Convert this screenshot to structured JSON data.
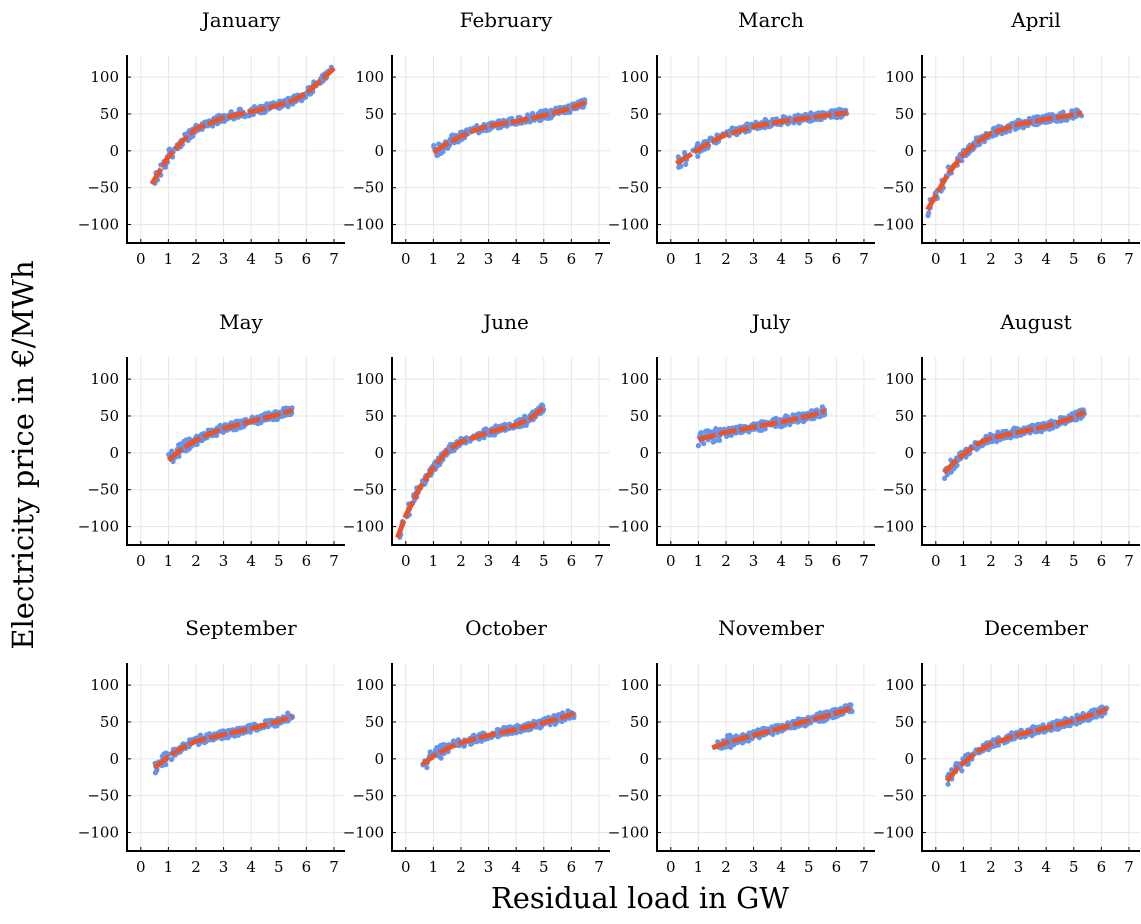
{
  "figure": {
    "xlabel": "Residual load in GW",
    "ylabel": "Electricity price in €/MWh"
  },
  "colors": {
    "points": "#6495ED",
    "fit": "#E8552D",
    "grid": "#e6e6e6",
    "axis": "#000000"
  },
  "chart_data": [
    {
      "type": "scatter",
      "title": "January",
      "xlim": [
        -0.5,
        7.4
      ],
      "ylim": [
        -125,
        130
      ],
      "xticks": [
        0,
        1,
        2,
        3,
        4,
        5,
        6,
        7
      ],
      "yticks": [
        -100,
        -50,
        0,
        50,
        100
      ],
      "grid": true,
      "range": [
        0.4,
        7.0
      ],
      "fit": [
        [
          0.4,
          -45
        ],
        [
          1,
          -8
        ],
        [
          1.5,
          13
        ],
        [
          2,
          30
        ],
        [
          3,
          45
        ],
        [
          4,
          53
        ],
        [
          5,
          62
        ],
        [
          5.5,
          68
        ],
        [
          6,
          78
        ],
        [
          6.5,
          95
        ],
        [
          7,
          112
        ]
      ]
    },
    {
      "type": "scatter",
      "title": "February",
      "xlim": [
        -0.5,
        7.4
      ],
      "ylim": [
        -125,
        130
      ],
      "xticks": [
        0,
        1,
        2,
        3,
        4,
        5,
        6,
        7
      ],
      "yticks": [
        -100,
        -50,
        0,
        50,
        100
      ],
      "grid": true,
      "range": [
        1.0,
        6.5
      ],
      "fit": [
        [
          1,
          -2
        ],
        [
          1.5,
          10
        ],
        [
          2,
          20
        ],
        [
          2.5,
          28
        ],
        [
          3,
          34
        ],
        [
          4,
          40
        ],
        [
          5,
          48
        ],
        [
          5.5,
          53
        ],
        [
          6,
          58
        ],
        [
          6.5,
          66
        ]
      ]
    },
    {
      "type": "scatter",
      "title": "March",
      "xlim": [
        -0.5,
        7.4
      ],
      "ylim": [
        -125,
        130
      ],
      "xticks": [
        0,
        1,
        2,
        3,
        4,
        5,
        6,
        7
      ],
      "yticks": [
        -100,
        -50,
        0,
        50,
        100
      ],
      "grid": true,
      "range": [
        0.2,
        6.4
      ],
      "fit": [
        [
          0.2,
          -17
        ],
        [
          0.6,
          -8
        ],
        [
          1,
          2
        ],
        [
          1.5,
          13
        ],
        [
          2,
          22
        ],
        [
          3,
          33
        ],
        [
          4,
          40
        ],
        [
          5,
          45
        ],
        [
          6,
          50
        ],
        [
          6.4,
          52
        ]
      ]
    },
    {
      "type": "scatter",
      "title": "April",
      "xlim": [
        -0.5,
        7.4
      ],
      "ylim": [
        -125,
        130
      ],
      "xticks": [
        0,
        1,
        2,
        3,
        4,
        5,
        6,
        7
      ],
      "yticks": [
        -100,
        -50,
        0,
        50,
        100
      ],
      "grid": true,
      "range": [
        -0.3,
        5.3
      ],
      "fit": [
        [
          -0.3,
          -80
        ],
        [
          0,
          -60
        ],
        [
          0.5,
          -28
        ],
        [
          1,
          -5
        ],
        [
          1.5,
          12
        ],
        [
          2,
          24
        ],
        [
          3,
          36
        ],
        [
          4,
          43
        ],
        [
          5,
          49
        ],
        [
          5.3,
          52
        ]
      ]
    },
    {
      "type": "scatter",
      "title": "May",
      "xlim": [
        -0.5,
        7.4
      ],
      "ylim": [
        -125,
        130
      ],
      "xticks": [
        0,
        1,
        2,
        3,
        4,
        5,
        6,
        7
      ],
      "yticks": [
        -100,
        -50,
        0,
        50,
        100
      ],
      "grid": true,
      "range": [
        1.0,
        5.5
      ],
      "fit": [
        [
          1,
          -10
        ],
        [
          1.5,
          6
        ],
        [
          2,
          17
        ],
        [
          2.5,
          26
        ],
        [
          3,
          33
        ],
        [
          4,
          43
        ],
        [
          5,
          52
        ],
        [
          5.5,
          58
        ]
      ]
    },
    {
      "type": "scatter",
      "title": "June",
      "xlim": [
        -0.5,
        7.4
      ],
      "ylim": [
        -125,
        130
      ],
      "xticks": [
        0,
        1,
        2,
        3,
        4,
        5,
        6,
        7
      ],
      "yticks": [
        -100,
        -50,
        0,
        50,
        100
      ],
      "grid": true,
      "range": [
        -0.3,
        5.0
      ],
      "fit": [
        [
          -0.3,
          -115
        ],
        [
          0,
          -85
        ],
        [
          0.5,
          -48
        ],
        [
          1,
          -20
        ],
        [
          1.5,
          3
        ],
        [
          2,
          15
        ],
        [
          3,
          28
        ],
        [
          4,
          38
        ],
        [
          4.5,
          46
        ],
        [
          5,
          62
        ]
      ]
    },
    {
      "type": "scatter",
      "title": "July",
      "xlim": [
        -0.5,
        7.4
      ],
      "ylim": [
        -125,
        130
      ],
      "xticks": [
        0,
        1,
        2,
        3,
        4,
        5,
        6,
        7
      ],
      "yticks": [
        -100,
        -50,
        0,
        50,
        100
      ],
      "grid": true,
      "range": [
        1.0,
        5.6
      ],
      "fit": [
        [
          1,
          18
        ],
        [
          2,
          28
        ],
        [
          3,
          35
        ],
        [
          4,
          42
        ],
        [
          5,
          50
        ],
        [
          5.6,
          57
        ]
      ]
    },
    {
      "type": "scatter",
      "title": "August",
      "xlim": [
        -0.5,
        7.4
      ],
      "ylim": [
        -125,
        130
      ],
      "xticks": [
        0,
        1,
        2,
        3,
        4,
        5,
        6,
        7
      ],
      "yticks": [
        -100,
        -50,
        0,
        50,
        100
      ],
      "grid": true,
      "range": [
        0.3,
        5.4
      ],
      "fit": [
        [
          0.3,
          -27
        ],
        [
          0.8,
          -8
        ],
        [
          1.5,
          12
        ],
        [
          2,
          20
        ],
        [
          3,
          28
        ],
        [
          4,
          36
        ],
        [
          5,
          48
        ],
        [
          5.4,
          56
        ]
      ]
    },
    {
      "type": "scatter",
      "title": "September",
      "xlim": [
        -0.5,
        7.4
      ],
      "ylim": [
        -125,
        130
      ],
      "xticks": [
        0,
        1,
        2,
        3,
        4,
        5,
        6,
        7
      ],
      "yticks": [
        -100,
        -50,
        0,
        50,
        100
      ],
      "grid": true,
      "range": [
        0.5,
        5.5
      ],
      "fit": [
        [
          0.5,
          -12
        ],
        [
          1,
          3
        ],
        [
          1.5,
          15
        ],
        [
          2,
          24
        ],
        [
          3,
          33
        ],
        [
          4,
          41
        ],
        [
          5,
          51
        ],
        [
          5.5,
          58
        ]
      ]
    },
    {
      "type": "scatter",
      "title": "October",
      "xlim": [
        -0.5,
        7.4
      ],
      "ylim": [
        -125,
        130
      ],
      "xticks": [
        0,
        1,
        2,
        3,
        4,
        5,
        6,
        7
      ],
      "yticks": [
        -100,
        -50,
        0,
        50,
        100
      ],
      "grid": true,
      "range": [
        0.6,
        6.1
      ],
      "fit": [
        [
          0.6,
          -8
        ],
        [
          1,
          4
        ],
        [
          1.5,
          14
        ],
        [
          2,
          22
        ],
        [
          3,
          32
        ],
        [
          4,
          40
        ],
        [
          5,
          49
        ],
        [
          6,
          60
        ],
        [
          6.1,
          62
        ]
      ]
    },
    {
      "type": "scatter",
      "title": "November",
      "xlim": [
        -0.5,
        7.4
      ],
      "ylim": [
        -125,
        130
      ],
      "xticks": [
        0,
        1,
        2,
        3,
        4,
        5,
        6,
        7
      ],
      "yticks": [
        -100,
        -50,
        0,
        50,
        100
      ],
      "grid": true,
      "range": [
        1.5,
        6.6
      ],
      "fit": [
        [
          1.5,
          15
        ],
        [
          2,
          22
        ],
        [
          3,
          32
        ],
        [
          4,
          42
        ],
        [
          5,
          52
        ],
        [
          6,
          62
        ],
        [
          6.6,
          70
        ]
      ]
    },
    {
      "type": "scatter",
      "title": "December",
      "xlim": [
        -0.5,
        7.4
      ],
      "ylim": [
        -125,
        130
      ],
      "xticks": [
        0,
        1,
        2,
        3,
        4,
        5,
        6,
        7
      ],
      "yticks": [
        -100,
        -50,
        0,
        50,
        100
      ],
      "grid": true,
      "range": [
        0.4,
        6.2
      ],
      "fit": [
        [
          0.4,
          -30
        ],
        [
          0.8,
          -12
        ],
        [
          1.5,
          10
        ],
        [
          2,
          20
        ],
        [
          3,
          33
        ],
        [
          4,
          42
        ],
        [
          5,
          52
        ],
        [
          6,
          64
        ],
        [
          6.2,
          68
        ]
      ]
    }
  ]
}
